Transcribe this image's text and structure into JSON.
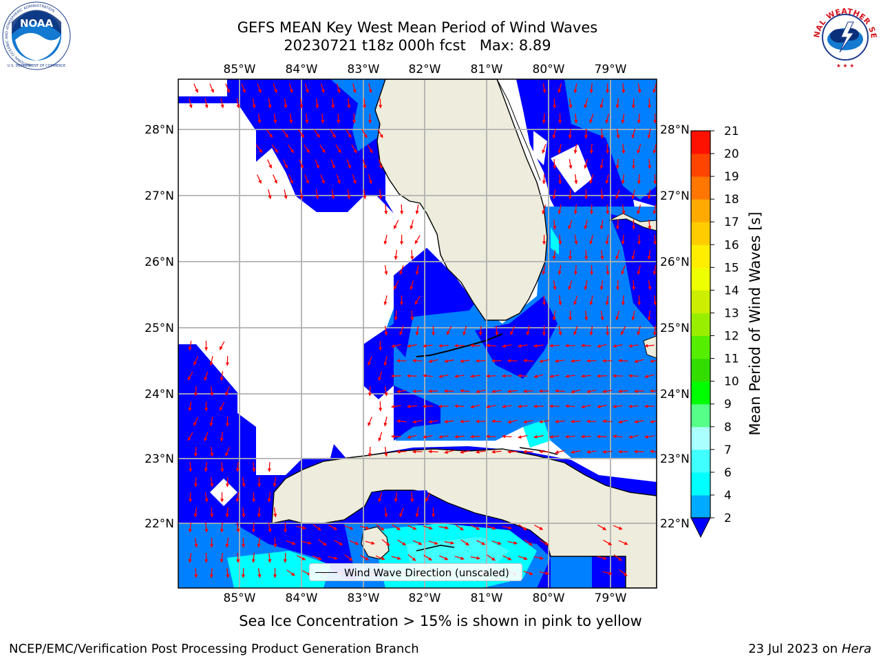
{
  "header": {
    "title_line1": "GEFS MEAN Key West Mean Period of Wind Waves",
    "title_line2": "20230721 t18z 000h fcst   Max: 8.89"
  },
  "logos": {
    "noaa_text": "NOAA",
    "noaa_ring_text": "NATIONAL OCEANIC AND ATMOSPHERIC ADMINISTRATION",
    "noaa_bottom_text": "U.S. DEPARTMENT OF COMMERCE",
    "nws_ring_text": "NATIONAL WEATHER SERVICE"
  },
  "map": {
    "lon_labels": [
      "85°W",
      "84°W",
      "83°W",
      "82°W",
      "81°W",
      "80°W",
      "79°W"
    ],
    "lat_labels": [
      "28°N",
      "27°N",
      "26°N",
      "25°N",
      "24°N",
      "23°N",
      "22°N"
    ],
    "legend_label": "Wind Wave Direction (unscaled)",
    "colors": {
      "land": "#eeecdc",
      "blue_2_4": "#0000ff",
      "blue_4_6": "#0080ff",
      "cyan_6_8": "#00ffff",
      "arrow": "#ff0000"
    }
  },
  "colorbar": {
    "title": "Mean Period of Wind Waves [s]",
    "ticks": [
      "2",
      "4",
      "6",
      "7",
      "8",
      "9",
      "10",
      "11",
      "12",
      "13",
      "14",
      "15",
      "16",
      "17",
      "18",
      "19",
      "20",
      "21"
    ],
    "colors": [
      "#0055ff",
      "#00aaff",
      "#00ffff",
      "#40ffff",
      "#aaffff",
      "#55ff88",
      "#00ff00",
      "#33dd00",
      "#55ee00",
      "#99ee00",
      "#ccee00",
      "#eeff00",
      "#ffee00",
      "#ffcc00",
      "#ffaa00",
      "#ff7700",
      "#ff4400",
      "#ff1100"
    ]
  },
  "subnote": "Sea Ice Concentration > 15% is shown in pink to yellow",
  "footer": {
    "left": "NCEP/EMC/Verification Post Processing Product Generation Branch",
    "date": "23 Jul 2023 on",
    "host": "Hera"
  }
}
